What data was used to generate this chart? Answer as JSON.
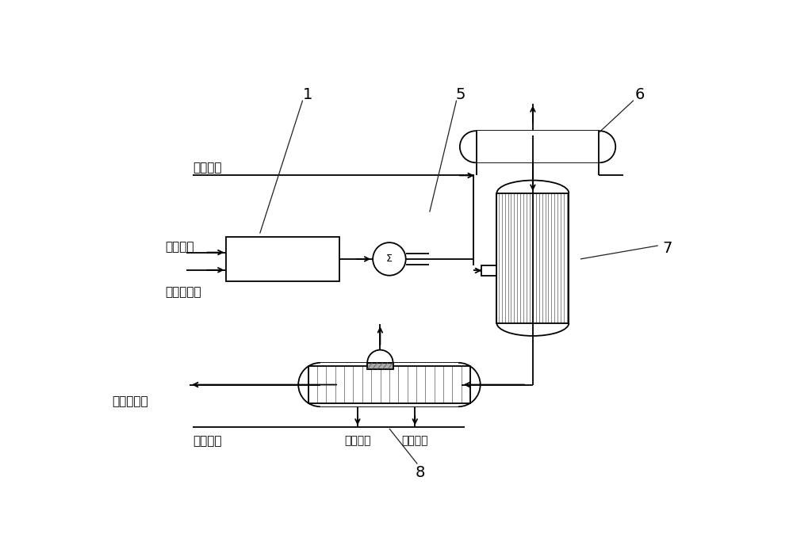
{
  "labels": {
    "boiler_water_top": "锅炉给水",
    "claus_gas": "克劳斯气",
    "oxygen_air": "氧气或空气",
    "post_process": "后工序处理",
    "boiler_water_bottom": "锅炉给水",
    "sulfur_collect_left": "硫磺收集",
    "sulfur_collect_right": "硫磺收集",
    "num1": "1",
    "num5": "5",
    "num6": "6",
    "num7": "7",
    "num8": "8"
  },
  "colors": {
    "line": "#000000",
    "background": "#ffffff",
    "stripe": "#666666"
  },
  "layout": {
    "figw": 10.0,
    "figh": 7.03,
    "xmax": 10.0,
    "ymax": 7.03
  }
}
